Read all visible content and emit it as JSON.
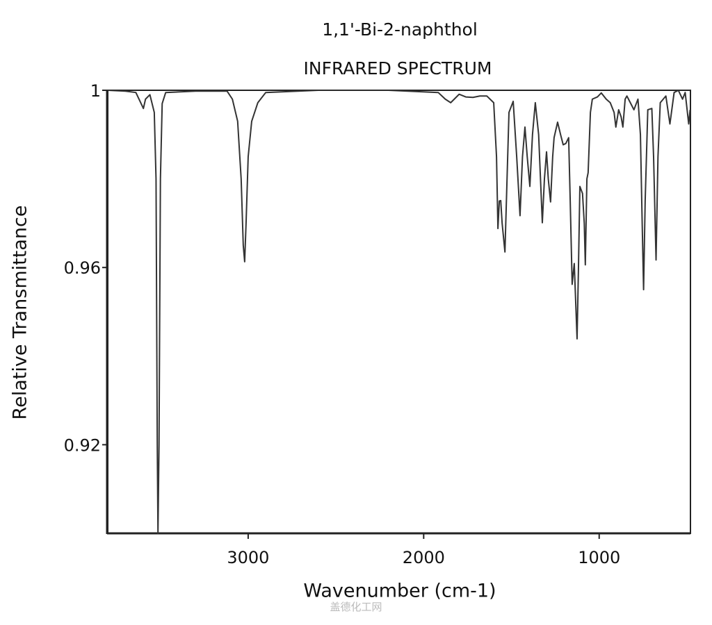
{
  "chart_data": {
    "type": "line",
    "title": "1,1'-Bi-2-naphthol",
    "subtitle": "INFRARED SPECTRUM",
    "xlabel": "Wavenumber (cm-1)",
    "ylabel": "Relative Transmittance",
    "watermark": "盖德化工网",
    "xlim": [
      3800,
      480
    ],
    "ylim": [
      0.9,
      1
    ],
    "xticks": [
      3000,
      2000,
      1000
    ],
    "yticks": [
      1,
      0.96,
      0.92
    ],
    "grid": false,
    "series": [
      {
        "color": "#333333",
        "x": [
          3800,
          3700,
          3640,
          3610,
          3597,
          3585,
          3560,
          3535,
          3525,
          3518,
          3514,
          3508,
          3500,
          3490,
          3470,
          3300,
          3120,
          3090,
          3060,
          3040,
          3028,
          3020,
          3012,
          3000,
          2980,
          2945,
          2900,
          2600,
          2200,
          1917,
          1877,
          1846,
          1798,
          1760,
          1719,
          1680,
          1640,
          1601,
          1585,
          1577,
          1569,
          1561,
          1553,
          1537,
          1525,
          1514,
          1490,
          1470,
          1451,
          1437,
          1423,
          1410,
          1395,
          1380,
          1364,
          1345,
          1324,
          1312,
          1300,
          1290,
          1277,
          1265,
          1257,
          1237,
          1220,
          1205,
          1190,
          1174,
          1165,
          1154,
          1142,
          1126,
          1118,
          1110,
          1095,
          1085,
          1079,
          1070,
          1063,
          1050,
          1039,
          1010,
          988,
          960,
          937,
          915,
          905,
          889,
          875,
          865,
          852,
          842,
          820,
          802,
          779,
          765,
          755,
          747,
          738,
          723,
          700,
          690,
          676,
          665,
          652,
          620,
          597,
          573,
          549,
          525,
          510,
          490,
          482
        ],
        "values": [
          1.0,
          0.9998,
          0.9995,
          0.997,
          0.9959,
          0.998,
          0.999,
          0.995,
          0.98,
          0.92,
          0.9,
          0.92,
          0.98,
          0.997,
          0.9995,
          0.9998,
          0.9998,
          0.998,
          0.993,
          0.98,
          0.965,
          0.9613,
          0.97,
          0.985,
          0.993,
          0.9972,
          0.9995,
          1.0,
          1.0,
          0.9995,
          0.998,
          0.9972,
          0.9991,
          0.9985,
          0.9984,
          0.9987,
          0.9987,
          0.9972,
          0.985,
          0.9688,
          0.975,
          0.9751,
          0.97,
          0.9635,
          0.98,
          0.995,
          0.9975,
          0.985,
          0.9717,
          0.985,
          0.9917,
          0.985,
          0.9783,
          0.99,
          0.9972,
          0.99,
          0.9701,
          0.98,
          0.9861,
          0.98,
          0.9748,
          0.985,
          0.9893,
          0.9928,
          0.99,
          0.9877,
          0.988,
          0.9893,
          0.975,
          0.9562,
          0.9609,
          0.9439,
          0.96,
          0.9783,
          0.9767,
          0.97,
          0.9606,
          0.98,
          0.9814,
          0.995,
          0.998,
          0.9985,
          0.9994,
          0.998,
          0.9972,
          0.995,
          0.9917,
          0.9956,
          0.994,
          0.9917,
          0.998,
          0.9987,
          0.997,
          0.9956,
          0.998,
          0.99,
          0.97,
          0.955,
          0.975,
          0.9956,
          0.9959,
          0.985,
          0.9617,
          0.985,
          0.9972,
          0.9987,
          0.9924,
          0.9995,
          1.0,
          0.998,
          0.9995,
          0.9924,
          0.9956
        ]
      }
    ]
  }
}
